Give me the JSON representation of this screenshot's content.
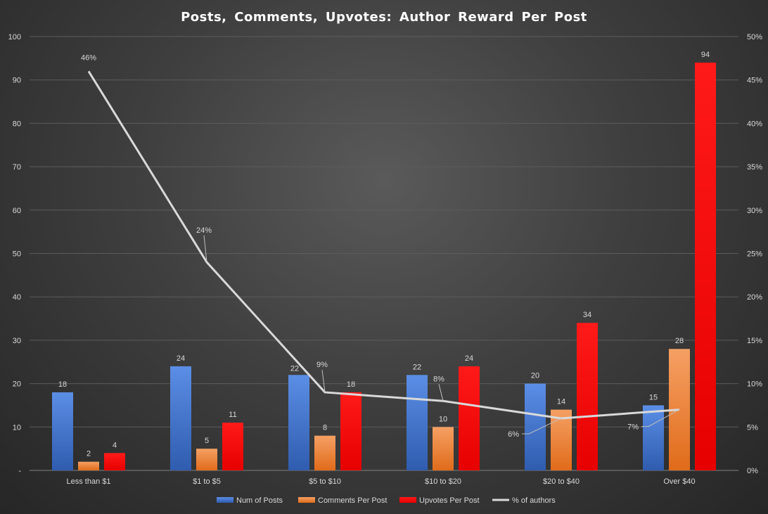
{
  "chart_data": {
    "type": "bar",
    "title": "Posts, Comments, Upvotes: Author Reward Per Post",
    "categories": [
      "Less than $1",
      "$1 to $5",
      "$5 to $10",
      "$10 to $20",
      "$20 to $40",
      "Over $40"
    ],
    "series": [
      {
        "name": "Num of Posts",
        "type": "bar",
        "axis": "left",
        "values": [
          18,
          24,
          22,
          22,
          20,
          15
        ],
        "color": "#4472c4",
        "labels": [
          "18",
          "24",
          "22",
          "22",
          "20",
          "15"
        ]
      },
      {
        "name": "Comments Per Post",
        "type": "bar",
        "axis": "left",
        "values": [
          2,
          5,
          8,
          10,
          14,
          28
        ],
        "color": "#ed7d31",
        "labels": [
          "2",
          "5",
          "8",
          "10",
          "14",
          "28"
        ]
      },
      {
        "name": "Upvotes Per Post",
        "type": "bar",
        "axis": "left",
        "values": [
          4,
          11,
          18,
          24,
          34,
          94
        ],
        "color": "#ff0000",
        "labels": [
          "4",
          "11",
          "18",
          "24",
          "34",
          "94"
        ]
      },
      {
        "name": "% of authors",
        "type": "line",
        "axis": "right",
        "values": [
          46,
          24,
          9,
          8,
          6,
          7
        ],
        "color": "#d9d9d9",
        "labels": [
          "46%",
          "24%",
          "9%",
          "8%",
          "6%",
          "7%"
        ]
      }
    ],
    "y_left": {
      "min": 0,
      "max": 100,
      "step": 10,
      "ticks": [
        "-",
        "10",
        "20",
        "30",
        "40",
        "50",
        "60",
        "70",
        "80",
        "90",
        "100"
      ]
    },
    "y_right": {
      "min": 0,
      "max": 50,
      "step": 5,
      "ticks": [
        "0%",
        "5%",
        "10%",
        "15%",
        "20%",
        "25%",
        "30%",
        "35%",
        "40%",
        "45%",
        "50%"
      ]
    },
    "grid": true,
    "legend": "bottom"
  }
}
